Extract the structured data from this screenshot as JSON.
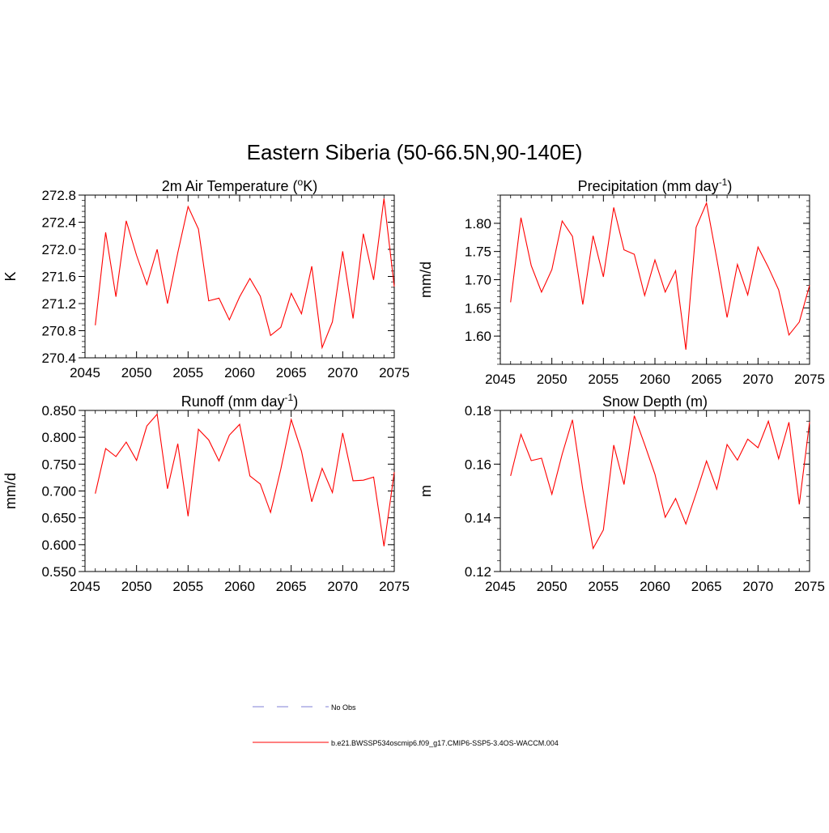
{
  "main_title": "Eastern Siberia (50-66.5N,90-140E)",
  "colors": {
    "series": "#ff0000",
    "obs": "#9999dd",
    "axis": "#000000"
  },
  "chart_data": [
    {
      "type": "line",
      "title": "2m Air Temperature (",
      "title_sup": "o",
      "title_end": "K)",
      "ylabel": "K",
      "xlim": [
        2045,
        2075
      ],
      "ylim": [
        270.4,
        272.8
      ],
      "x_ticks": [
        2045,
        2050,
        2055,
        2060,
        2065,
        2070,
        2075
      ],
      "x_tick_labels": [
        "2045",
        "2050",
        "2055",
        "2060",
        "2065",
        "2070",
        "2075"
      ],
      "y_ticks": [
        270.4,
        270.8,
        271.2,
        271.6,
        272.0,
        272.4,
        272.8
      ],
      "y_tick_labels": [
        "270.4",
        "270.8",
        "271.2",
        "271.6",
        "272.0",
        "272.4",
        "272.8"
      ],
      "y_minor_step": 0.08,
      "x": [
        2046,
        2047,
        2048,
        2049,
        2050,
        2051,
        2052,
        2053,
        2054,
        2055,
        2056,
        2057,
        2058,
        2059,
        2060,
        2061,
        2062,
        2063,
        2064,
        2065,
        2066,
        2067,
        2068,
        2069,
        2070,
        2071,
        2072,
        2073,
        2074,
        2075
      ],
      "values": [
        270.88,
        272.25,
        271.3,
        272.42,
        271.91,
        271.48,
        272.0,
        271.2,
        271.95,
        272.63,
        272.3,
        271.24,
        271.28,
        270.96,
        271.3,
        271.57,
        271.31,
        270.73,
        270.85,
        271.35,
        271.05,
        271.75,
        270.55,
        270.93,
        271.97,
        270.98,
        272.23,
        271.55,
        272.75,
        271.45
      ]
    },
    {
      "type": "line",
      "title": "Precipitation (mm day",
      "title_sup": "-1",
      "title_end": ")",
      "ylabel": "mm/d",
      "xlim": [
        2045,
        2075
      ],
      "ylim": [
        1.55,
        1.85
      ],
      "x_ticks": [
        2045,
        2050,
        2055,
        2060,
        2065,
        2070,
        2075
      ],
      "x_tick_labels": [
        "2045",
        "2050",
        "2055",
        "2060",
        "2065",
        "2070",
        "2075"
      ],
      "y_ticks": [
        1.6,
        1.65,
        1.7,
        1.75,
        1.8
      ],
      "y_tick_labels": [
        "1.60",
        "1.65",
        "1.70",
        "1.75",
        "1.80"
      ],
      "y_minor_step": 0.01,
      "x": [
        2046,
        2047,
        2048,
        2049,
        2050,
        2051,
        2052,
        2053,
        2054,
        2055,
        2056,
        2057,
        2058,
        2059,
        2060,
        2061,
        2062,
        2063,
        2064,
        2065,
        2066,
        2067,
        2068,
        2069,
        2070,
        2071,
        2072,
        2073,
        2074,
        2075
      ],
      "values": [
        1.66,
        1.81,
        1.725,
        1.678,
        1.718,
        1.804,
        1.777,
        1.656,
        1.778,
        1.705,
        1.828,
        1.753,
        1.745,
        1.672,
        1.735,
        1.678,
        1.716,
        1.576,
        1.793,
        1.836,
        1.737,
        1.633,
        1.727,
        1.673,
        1.758,
        1.722,
        1.682,
        1.602,
        1.625,
        1.69
      ]
    },
    {
      "type": "line",
      "title": "Runoff (mm day",
      "title_sup": "-1",
      "title_end": ")",
      "ylabel": "mm/d",
      "xlim": [
        2045,
        2075
      ],
      "ylim": [
        0.55,
        0.85
      ],
      "x_ticks": [
        2045,
        2050,
        2055,
        2060,
        2065,
        2070,
        2075
      ],
      "x_tick_labels": [
        "2045",
        "2050",
        "2055",
        "2060",
        "2065",
        "2070",
        "2075"
      ],
      "y_ticks": [
        0.55,
        0.6,
        0.65,
        0.7,
        0.75,
        0.8,
        0.85
      ],
      "y_tick_labels": [
        "0.550",
        "0.600",
        "0.650",
        "0.700",
        "0.750",
        "0.800",
        "0.850"
      ],
      "y_minor_step": 0.01,
      "x": [
        2046,
        2047,
        2048,
        2049,
        2050,
        2051,
        2052,
        2053,
        2054,
        2055,
        2056,
        2057,
        2058,
        2059,
        2060,
        2061,
        2062,
        2063,
        2064,
        2065,
        2066,
        2067,
        2068,
        2069,
        2070,
        2071,
        2072,
        2073,
        2074,
        2075
      ],
      "values": [
        0.695,
        0.779,
        0.764,
        0.791,
        0.757,
        0.821,
        0.843,
        0.704,
        0.788,
        0.653,
        0.815,
        0.795,
        0.756,
        0.804,
        0.824,
        0.728,
        0.713,
        0.66,
        0.741,
        0.833,
        0.774,
        0.68,
        0.742,
        0.697,
        0.808,
        0.719,
        0.72,
        0.726,
        0.597,
        0.735
      ]
    },
    {
      "type": "line",
      "title": "Snow Depth (m)",
      "title_sup": "",
      "title_end": "",
      "ylabel": "m",
      "xlim": [
        2045,
        2075
      ],
      "ylim": [
        0.12,
        0.18
      ],
      "x_ticks": [
        2045,
        2050,
        2055,
        2060,
        2065,
        2070,
        2075
      ],
      "x_tick_labels": [
        "2045",
        "2050",
        "2055",
        "2060",
        "2065",
        "2070",
        "2075"
      ],
      "y_ticks": [
        0.12,
        0.14,
        0.16,
        0.18
      ],
      "y_tick_labels": [
        "0.12",
        "0.14",
        "0.16",
        "0.18"
      ],
      "y_minor_step": 0.004,
      "x": [
        2046,
        2047,
        2048,
        2049,
        2050,
        2051,
        2052,
        2053,
        2054,
        2055,
        2056,
        2057,
        2058,
        2059,
        2060,
        2061,
        2062,
        2063,
        2064,
        2065,
        2066,
        2067,
        2068,
        2069,
        2070,
        2071,
        2072,
        2073,
        2074,
        2075
      ],
      "values": [
        0.1556,
        0.1711,
        0.1613,
        0.1622,
        0.1488,
        0.1637,
        0.1765,
        0.1505,
        0.1286,
        0.1355,
        0.1671,
        0.1524,
        0.178,
        0.1673,
        0.1562,
        0.1402,
        0.1472,
        0.1377,
        0.1491,
        0.1612,
        0.1507,
        0.1673,
        0.1615,
        0.1693,
        0.1661,
        0.176,
        0.162,
        0.1756,
        0.145,
        0.1757
      ]
    }
  ],
  "legend": {
    "obs_label": "No Obs",
    "model_label": "b.e21.BWSSP534oscmip6.f09_g17.CMIP6-SSP5-3.4OS-WACCM.004"
  }
}
